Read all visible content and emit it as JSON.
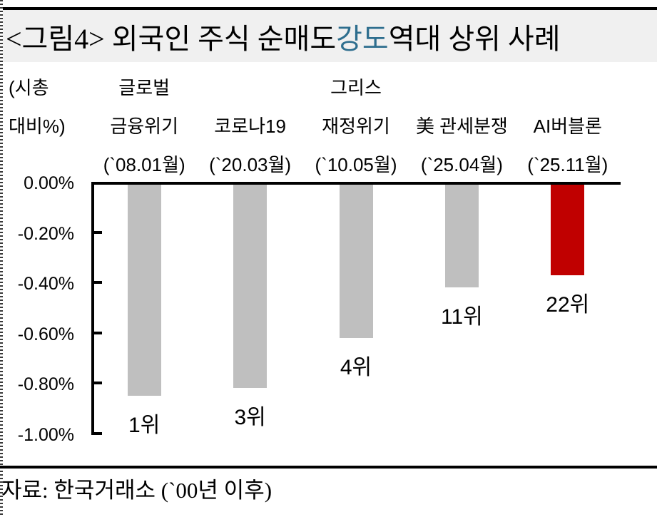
{
  "title": {
    "prefix": "<그림4> 외국인 주식 순매도 ",
    "highlight": "강도",
    "suffix": " 역대 상위 사례"
  },
  "colors": {
    "title_highlight": "#2E6E8E",
    "title_background": "#F0F0F0",
    "bar_gray": "#BFBFBF",
    "bar_red": "#C00000",
    "axis": "#000000"
  },
  "axis_unit_label": {
    "line1": "(시총",
    "line2": "대비%)"
  },
  "source": "자료: 한국거래소 (`00년 이후)",
  "chart_data": {
    "type": "bar",
    "title": "외국인 주식 순매도 강도 역대 상위 사례",
    "ylabel": "(시총 대비%)",
    "ylim": [
      -1.0,
      0.0
    ],
    "grid": false,
    "legend": "none",
    "yticks": [
      {
        "label": "0.00%",
        "value": 0.0
      },
      {
        "label": "-0.20%",
        "value": -0.2
      },
      {
        "label": "-0.40%",
        "value": -0.4
      },
      {
        "label": "-0.60%",
        "value": -0.6
      },
      {
        "label": "-0.80%",
        "value": -0.8
      },
      {
        "label": "-1.00%",
        "value": -1.0
      }
    ],
    "categories": [
      {
        "lines": [
          "글로벌",
          "금융위기",
          "(`08.01월)"
        ]
      },
      {
        "lines": [
          "",
          "코로나19",
          "(`20.03월)"
        ]
      },
      {
        "lines": [
          "그리스",
          "재정위기",
          "(`10.05월)"
        ]
      },
      {
        "lines": [
          "",
          "美 관세분쟁",
          "(`25.04월)"
        ]
      },
      {
        "lines": [
          "",
          "AI버블론",
          "(`25.11월)"
        ]
      }
    ],
    "values": [
      -0.85,
      -0.82,
      -0.62,
      -0.42,
      -0.37
    ],
    "rank_labels": [
      "1위",
      "3위",
      "4위",
      "11위",
      "22위"
    ],
    "highlight_index": 4
  }
}
